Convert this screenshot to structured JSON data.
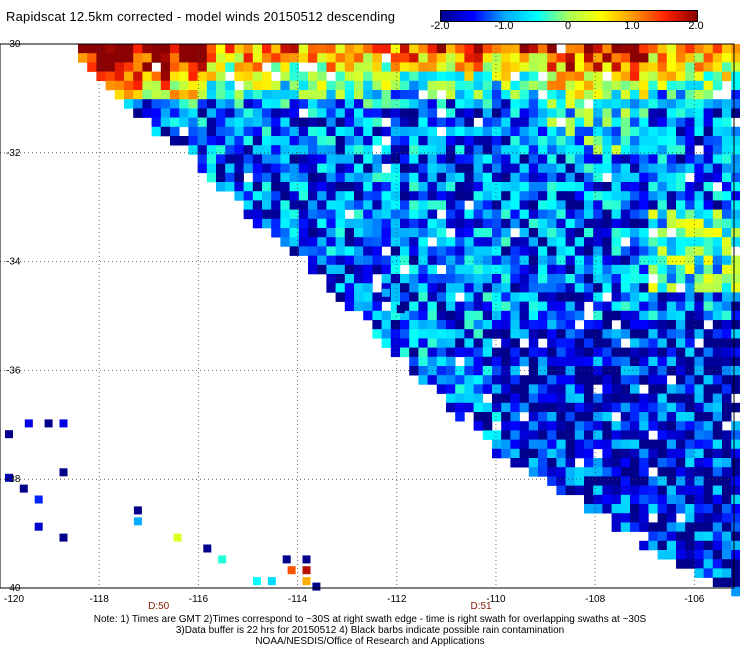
{
  "title": "Rapidscat 12.5km corrected - model winds 20150512 descending",
  "colorbar": {
    "min": -2.0,
    "max": 2.0,
    "tick_labels": [
      "-2.0",
      "-1.0",
      "0",
      "1.0",
      "2.0"
    ],
    "tick_values": [
      -2.0,
      -1.0,
      0,
      1.0,
      2.0
    ],
    "colors": [
      "#00008b",
      "#0000ff",
      "#00aaff",
      "#00ffff",
      "#aaff55",
      "#ffff00",
      "#ff9900",
      "#ff2200",
      "#8b0000"
    ]
  },
  "map": {
    "lon_range": [
      -120,
      -105.2
    ],
    "lat_range": [
      -40,
      -30
    ],
    "lat_labels": [
      "-30",
      "-32",
      "-34",
      "-36",
      "-38",
      "-40"
    ],
    "lat_values": [
      -30,
      -32,
      -34,
      -36,
      -38,
      -40
    ],
    "lon_labels": [
      "-120",
      "-118",
      "-116",
      "-114",
      "-112",
      "-110",
      "-108",
      "-106"
    ],
    "lon_values": [
      -120,
      -118,
      -116,
      -114,
      -112,
      -110,
      -108,
      -106
    ],
    "time_labels": [
      {
        "text": "D:50",
        "lon": -116.8
      },
      {
        "text": "D:51",
        "lon": -110.3
      }
    ],
    "grid": "dotted",
    "swath": {
      "description_values": "wind speed difference (corrected - model)",
      "scattered_cells": [
        {
          "lon": -119.9,
          "lat": -37.1,
          "v": -2.0
        },
        {
          "lon": -119.5,
          "lat": -36.9,
          "v": -1.6
        },
        {
          "lon": -119.1,
          "lat": -36.9,
          "v": -2.0
        },
        {
          "lon": -118.8,
          "lat": -36.9,
          "v": -1.6
        },
        {
          "lon": -119.9,
          "lat": -37.9,
          "v": -1.8
        },
        {
          "lon": -119.6,
          "lat": -38.1,
          "v": -2.0
        },
        {
          "lon": -119.3,
          "lat": -38.3,
          "v": -1.4
        },
        {
          "lon": -118.8,
          "lat": -37.8,
          "v": -2.0
        },
        {
          "lon": -119.3,
          "lat": -38.8,
          "v": -1.7
        },
        {
          "lon": -118.8,
          "lat": -39.0,
          "v": -2.0
        },
        {
          "lon": -117.3,
          "lat": -38.5,
          "v": -2.0
        },
        {
          "lon": -117.3,
          "lat": -38.7,
          "v": -1.0
        },
        {
          "lon": -116.5,
          "lat": -39.0,
          "v": 0.3
        },
        {
          "lon": -115.9,
          "lat": -39.2,
          "v": -2.0
        },
        {
          "lon": -115.6,
          "lat": -39.4,
          "v": -0.4
        },
        {
          "lon": -114.9,
          "lat": -39.8,
          "v": -0.5
        },
        {
          "lon": -114.6,
          "lat": -39.8,
          "v": -0.7
        },
        {
          "lon": -114.3,
          "lat": -39.4,
          "v": -2.0
        },
        {
          "lon": -113.9,
          "lat": -39.4,
          "v": -2.0
        },
        {
          "lon": -114.2,
          "lat": -39.6,
          "v": 1.3
        },
        {
          "lon": -113.9,
          "lat": -39.6,
          "v": 1.8
        },
        {
          "lon": -113.9,
          "lat": -39.8,
          "v": 0.9
        },
        {
          "lon": -113.7,
          "lat": -39.9,
          "v": -2.0
        },
        {
          "lon": -112.3,
          "lat": -34.5,
          "v": -1.0
        },
        {
          "lon": -112.0,
          "lat": -34.8,
          "v": -2.0
        }
      ]
    }
  },
  "notes": [
    "Note: 1) Times are GMT 2)Times correspond to ~30S at right swath edge - time is right swath for overlapping swaths at ~30S",
    "3)Data buffer is 22 hrs for 20150512 4) Black barbs indicate possible rain contamination",
    "NOAA/NESDIS/Office of Research and Applications"
  ]
}
